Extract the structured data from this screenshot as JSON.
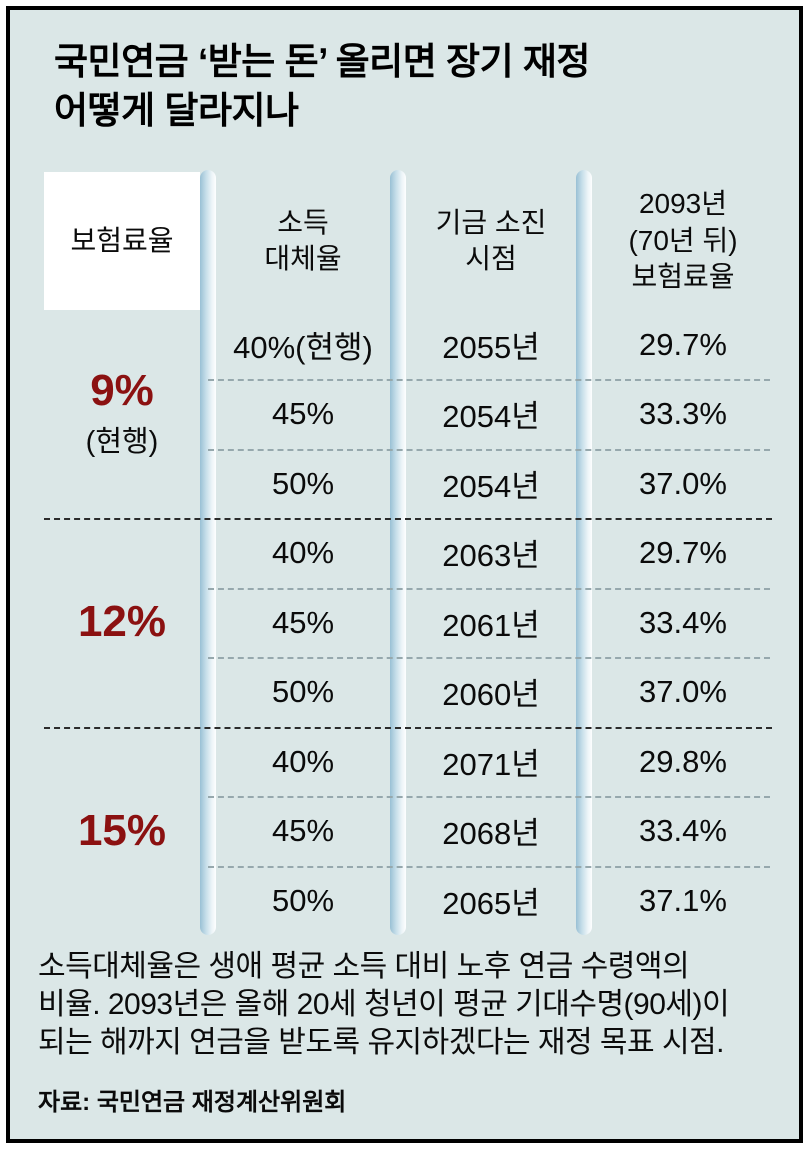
{
  "title": {
    "line1": "국민연금 ‘받는 돈’ 올리면 장기 재정",
    "line2": "어떻게 달라지나"
  },
  "table": {
    "headers": [
      "보험료율",
      "소득\n대체율",
      "기금 소진\n시점",
      "2093년\n(70년 뒤)\n보험료율"
    ],
    "groups": [
      {
        "rate": "9%",
        "note": "(현행)",
        "rows": [
          {
            "replacement": "40%(현행)",
            "depletion": "2055년",
            "premium_2093": "29.7%"
          },
          {
            "replacement": "45%",
            "depletion": "2054년",
            "premium_2093": "33.3%"
          },
          {
            "replacement": "50%",
            "depletion": "2054년",
            "premium_2093": "37.0%"
          }
        ]
      },
      {
        "rate": "12%",
        "note": "",
        "rows": [
          {
            "replacement": "40%",
            "depletion": "2063년",
            "premium_2093": "29.7%"
          },
          {
            "replacement": "45%",
            "depletion": "2061년",
            "premium_2093": "33.4%"
          },
          {
            "replacement": "50%",
            "depletion": "2060년",
            "premium_2093": "37.0%"
          }
        ]
      },
      {
        "rate": "15%",
        "note": "",
        "rows": [
          {
            "replacement": "40%",
            "depletion": "2071년",
            "premium_2093": "29.8%"
          },
          {
            "replacement": "45%",
            "depletion": "2068년",
            "premium_2093": "33.4%"
          },
          {
            "replacement": "50%",
            "depletion": "2065년",
            "premium_2093": "37.1%"
          }
        ]
      }
    ]
  },
  "footnote": "소득대체율은 생애 평균 소득 대비 노후 연금 수령액의\n비율. 2093년은 올해 20세 청년이 평균 기대수명(90세)이\n되는 해까지 연금을 받도록 유지하겠다는 재정 목표 시점.",
  "source": "자료: 국민연금 재정계산위원회",
  "colors": {
    "background": "#dbe7e7",
    "accent_red": "#8b1111",
    "bar_blue": "#99c0d4",
    "frame_black": "#000000"
  },
  "chart_data": {
    "type": "table",
    "title": "국민연금 ‘받는 돈’ 올리면 장기 재정 어떻게 달라지나",
    "columns": [
      "보험료율",
      "소득대체율",
      "기금 소진 시점",
      "2093년(70년 뒤) 보험료율"
    ],
    "rows": [
      [
        "9%(현행)",
        "40%(현행)",
        "2055년",
        "29.7%"
      ],
      [
        "9%(현행)",
        "45%",
        "2054년",
        "33.3%"
      ],
      [
        "9%(현행)",
        "50%",
        "2054년",
        "37.0%"
      ],
      [
        "12%",
        "40%",
        "2063년",
        "29.7%"
      ],
      [
        "12%",
        "45%",
        "2061년",
        "33.4%"
      ],
      [
        "12%",
        "50%",
        "2060년",
        "37.0%"
      ],
      [
        "15%",
        "40%",
        "2071년",
        "29.8%"
      ],
      [
        "15%",
        "45%",
        "2068년",
        "33.4%"
      ],
      [
        "15%",
        "50%",
        "2065년",
        "37.1%"
      ]
    ]
  }
}
